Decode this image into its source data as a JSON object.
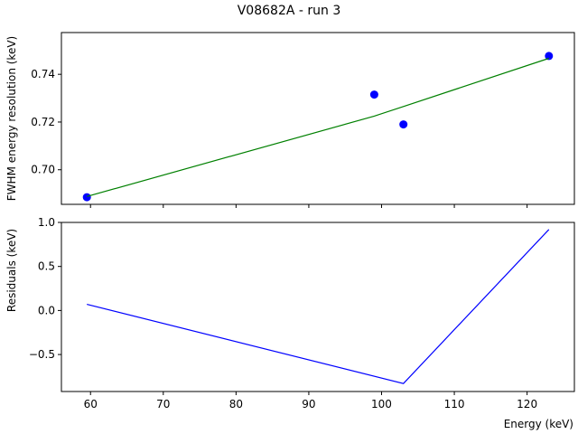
{
  "chart_data": [
    {
      "type": "scatter",
      "title": "V08682A - run 3",
      "xlabel": "",
      "ylabel": "FWHM energy resolution (keV)",
      "xlim": [
        56,
        126.5
      ],
      "ylim": [
        0.6855,
        0.7575
      ],
      "xticks": [
        60,
        70,
        80,
        90,
        100,
        110,
        120
      ],
      "yticks": [
        0.7,
        0.72,
        0.74
      ],
      "ytick_labels": [
        "0.70",
        "0.72",
        "0.74"
      ],
      "grid": false,
      "series": [
        {
          "kind": "points",
          "color": "#0000ff",
          "x": [
            59.5,
            99.0,
            103.0,
            123.0
          ],
          "y": [
            0.6885,
            0.7315,
            0.719,
            0.7477
          ]
        },
        {
          "kind": "line",
          "color": "#008000",
          "x": [
            59.5,
            99.0,
            103.0,
            123.0
          ],
          "y": [
            0.6888,
            0.7225,
            0.7265,
            0.7467
          ]
        }
      ]
    },
    {
      "type": "line",
      "title": "",
      "xlabel": "Energy (keV)",
      "ylabel": "Residuals (keV)",
      "xlim": [
        56,
        126.5
      ],
      "ylim": [
        -0.92,
        1.0
      ],
      "xticks": [
        60,
        70,
        80,
        90,
        100,
        110,
        120
      ],
      "yticks": [
        -0.5,
        0.0,
        0.5,
        1.0
      ],
      "ytick_labels": [
        "−0.5",
        "0.0",
        "0.5",
        "1.0"
      ],
      "grid": false,
      "series": [
        {
          "kind": "line",
          "color": "#0000ff",
          "x": [
            59.5,
            103.0,
            123.0
          ],
          "y": [
            0.07,
            -0.83,
            0.92
          ]
        }
      ]
    }
  ]
}
